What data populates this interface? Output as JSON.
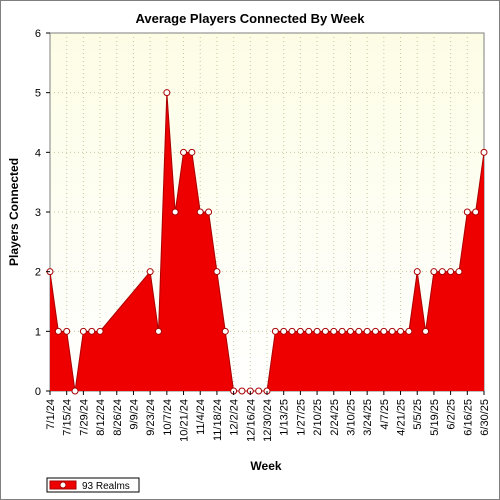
{
  "chart_data": {
    "type": "area",
    "title": "Average Players Connected By Week",
    "xlabel": "Week",
    "ylabel": "Players Connected",
    "ylim": [
      0,
      6
    ],
    "yticks": [
      0,
      1,
      2,
      3,
      4,
      5,
      6
    ],
    "grid": true,
    "legend_position": "bottom-left",
    "colors": {
      "fill": "#ee0000",
      "line": "#aa0000",
      "plot_bg": "#fefee8",
      "grid": "#c8c8a0",
      "marker_fill": "#ffffff"
    },
    "x": [
      "7/1/24",
      "7/8/24",
      "7/15/24",
      "7/22/24",
      "7/29/24",
      "8/5/24",
      "8/12/24",
      "8/19/24",
      "8/26/24",
      "9/2/24",
      "9/9/24",
      "9/16/24",
      "9/23/24",
      "9/30/24",
      "10/7/24",
      "10/14/24",
      "10/21/24",
      "10/28/24",
      "11/4/24",
      "11/11/24",
      "11/18/24",
      "11/25/24",
      "12/2/24",
      "12/9/24",
      "12/16/24",
      "12/23/24",
      "12/30/24",
      "1/6/25",
      "1/13/25",
      "1/20/25",
      "1/27/25",
      "2/3/25",
      "2/10/25",
      "2/17/25",
      "2/24/25",
      "3/3/25",
      "3/10/25",
      "3/17/25",
      "3/24/25",
      "3/31/25",
      "4/7/25",
      "4/14/25",
      "4/21/25",
      "4/28/25",
      "5/5/25",
      "5/12/25",
      "5/19/25",
      "5/26/25",
      "6/2/25",
      "6/9/25",
      "6/16/25",
      "6/23/25",
      "6/30/25"
    ],
    "xtick_labels": [
      "7/1/24",
      "7/15/24",
      "7/29/24",
      "8/12/24",
      "8/26/24",
      "9/9/24",
      "9/23/24",
      "10/7/24",
      "10/21/24",
      "11/4/24",
      "11/18/24",
      "12/2/24",
      "12/16/24",
      "12/30/24",
      "1/13/25",
      "1/27/25",
      "2/10/25",
      "2/24/25",
      "3/10/25",
      "3/24/25",
      "4/7/25",
      "4/21/25",
      "5/5/25",
      "5/19/25",
      "6/2/25",
      "6/16/25",
      "6/30/25"
    ],
    "series": [
      {
        "name": "93 Realms",
        "values": [
          2,
          1,
          1,
          0,
          1,
          1,
          1,
          null,
          null,
          null,
          null,
          null,
          2,
          1,
          5,
          3,
          4,
          4,
          3,
          3,
          2,
          1,
          0,
          0,
          0,
          0,
          0,
          1,
          1,
          1,
          1,
          1,
          1,
          1,
          1,
          1,
          1,
          1,
          1,
          1,
          1,
          1,
          1,
          1,
          2,
          1,
          2,
          2,
          2,
          2,
          3,
          3,
          4
        ]
      }
    ]
  }
}
